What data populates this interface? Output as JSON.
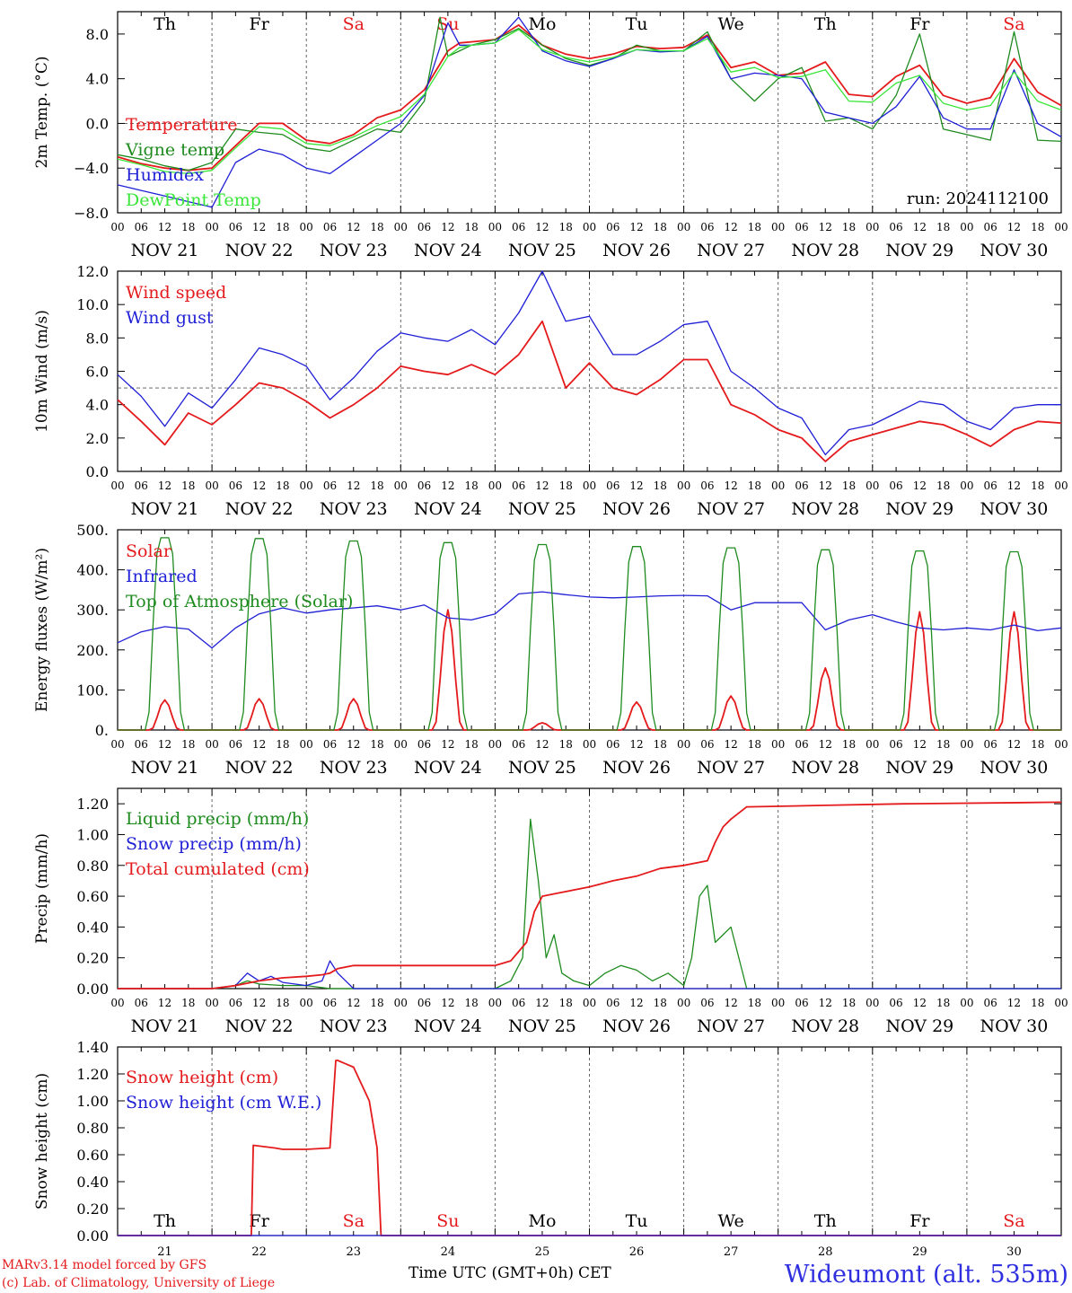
{
  "colors": {
    "red": "#e41a1c",
    "blue": "#1f1fd6",
    "green": "#1e8b1e",
    "lightgreen": "#39e639",
    "axis": "#000000",
    "weekend": "#e41a1c"
  },
  "hour_labels": [
    "00",
    "06",
    "12",
    "18"
  ],
  "date_labels": [
    "NOV 21",
    "NOV 22",
    "NOV 23",
    "NOV 24",
    "NOV 25",
    "NOV 26",
    "NOV 27",
    "NOV 28",
    "NOV 29",
    "NOV 30"
  ],
  "weekday_labels": [
    {
      "text": "Th",
      "weekend": false
    },
    {
      "text": "Fr",
      "weekend": false
    },
    {
      "text": "Sa",
      "weekend": true
    },
    {
      "text": "Su",
      "weekend": true
    },
    {
      "text": "Mo",
      "weekend": false
    },
    {
      "text": "Tu",
      "weekend": false
    },
    {
      "text": "We",
      "weekend": false
    },
    {
      "text": "Th",
      "weekend": false
    },
    {
      "text": "Fr",
      "weekend": false
    },
    {
      "text": "Sa",
      "weekend": true
    }
  ],
  "day_numbers": [
    "21",
    "22",
    "23",
    "24",
    "25",
    "26",
    "27",
    "28",
    "29",
    "30"
  ],
  "footer": {
    "model": "MARv3.14 model forced by GFS",
    "copyright": "(c) Lab. of Climatology, University of Liege",
    "xlabel": "Time UTC (GMT+0h)",
    "xlabel_overlay": "CET",
    "station": "Wideumont (alt. 535m)"
  },
  "chart_data": [
    {
      "type": "line",
      "ylabel": "2m Temp. (°C)",
      "ylim": [
        -8,
        10
      ],
      "yticks": [
        -8,
        -4,
        0,
        4,
        8
      ],
      "ytick_labels": [
        "−8.0",
        "−4.0",
        "0.0",
        "4.0",
        "8.0"
      ],
      "ref_line": 0,
      "show_weekdays": true,
      "annotation": "run: 2024112100",
      "x_unit": "hours since NOV 21 00 UTC",
      "series": [
        {
          "name": "Temperature",
          "color": "red",
          "x": [
            0,
            6,
            12,
            18,
            24,
            30,
            36,
            42,
            48,
            54,
            60,
            66,
            72,
            78,
            84,
            87,
            90,
            96,
            102,
            108,
            114,
            120,
            126,
            132,
            138,
            144,
            150,
            156,
            162,
            168,
            174,
            180,
            186,
            192,
            198,
            204,
            210,
            216,
            222,
            228,
            234,
            240
          ],
          "y": [
            -3.0,
            -3.6,
            -4.0,
            -4.2,
            -4.0,
            -2.0,
            0.0,
            0.0,
            -1.5,
            -1.8,
            -1.0,
            0.5,
            1.2,
            3.0,
            6.5,
            7.2,
            7.3,
            7.5,
            8.8,
            7.0,
            6.2,
            5.8,
            6.2,
            6.9,
            6.7,
            6.8,
            7.9,
            5.0,
            5.5,
            4.3,
            4.5,
            5.5,
            2.6,
            2.4,
            4.2,
            5.2,
            2.5,
            1.8,
            2.3,
            5.8,
            2.8,
            1.6
          ]
        },
        {
          "name": "Vigne temp",
          "color": "green",
          "x": [
            0,
            6,
            12,
            18,
            24,
            30,
            36,
            42,
            48,
            54,
            60,
            66,
            72,
            78,
            82,
            84,
            87,
            90,
            96,
            102,
            108,
            114,
            120,
            126,
            132,
            138,
            144,
            150,
            156,
            162,
            168,
            174,
            180,
            186,
            192,
            198,
            204,
            210,
            216,
            222,
            228,
            234,
            240
          ],
          "y": [
            -2.8,
            -3.2,
            -3.8,
            -4.2,
            -3.5,
            -0.5,
            -0.8,
            -1.0,
            -2.2,
            -2.5,
            -1.5,
            -0.5,
            -0.8,
            2.0,
            9.5,
            6.0,
            6.5,
            7.0,
            7.5,
            8.5,
            7.0,
            5.8,
            5.2,
            5.8,
            7.0,
            6.5,
            6.5,
            8.2,
            4.0,
            2.0,
            4.0,
            5.0,
            0.2,
            0.5,
            -0.5,
            2.5,
            8.0,
            -0.5,
            -1.0,
            -1.5,
            8.2,
            -1.5,
            -1.6
          ]
        },
        {
          "name": "Humidex",
          "color": "blue",
          "x": [
            0,
            6,
            12,
            18,
            24,
            30,
            36,
            42,
            48,
            54,
            60,
            66,
            72,
            78,
            84,
            87,
            90,
            96,
            102,
            108,
            114,
            120,
            126,
            132,
            138,
            144,
            150,
            156,
            162,
            168,
            174,
            180,
            186,
            192,
            198,
            204,
            210,
            216,
            222,
            228,
            234,
            240
          ],
          "y": [
            -5.5,
            -6.0,
            -6.5,
            -7.0,
            -7.5,
            -3.5,
            -2.3,
            -2.8,
            -4.0,
            -4.5,
            -3.0,
            -1.5,
            0.0,
            2.5,
            9.0,
            7.0,
            7.0,
            7.2,
            9.5,
            6.5,
            5.6,
            5.1,
            5.8,
            6.6,
            6.4,
            6.5,
            7.8,
            4.0,
            4.5,
            4.3,
            4.0,
            1.0,
            0.5,
            0.0,
            1.5,
            4.2,
            0.5,
            -0.5,
            -0.5,
            4.8,
            0.0,
            -1.2
          ]
        },
        {
          "name": "DewPoint Temp",
          "color": "lightgreen",
          "x": [
            0,
            6,
            12,
            18,
            24,
            30,
            36,
            42,
            48,
            54,
            60,
            66,
            72,
            78,
            84,
            87,
            90,
            96,
            102,
            108,
            114,
            120,
            126,
            132,
            138,
            144,
            150,
            156,
            162,
            168,
            174,
            180,
            186,
            192,
            198,
            204,
            210,
            216,
            222,
            228,
            234,
            240
          ],
          "y": [
            -3.2,
            -3.7,
            -4.3,
            -4.5,
            -4.2,
            -2.2,
            -0.3,
            -0.5,
            -1.8,
            -2.0,
            -1.2,
            -0.2,
            0.6,
            2.6,
            6.0,
            6.8,
            7.0,
            7.2,
            8.4,
            6.6,
            5.9,
            5.5,
            5.9,
            6.6,
            6.5,
            6.5,
            7.6,
            4.6,
            5.0,
            4.1,
            4.2,
            4.8,
            2.0,
            1.9,
            3.6,
            4.3,
            1.8,
            1.2,
            1.6,
            4.6,
            2.0,
            1.2
          ]
        }
      ]
    },
    {
      "type": "line",
      "ylabel": "10m Wind (m/s)",
      "ylim": [
        0,
        12
      ],
      "yticks": [
        0,
        2,
        4,
        6,
        8,
        10,
        12
      ],
      "ytick_labels": [
        "0.0",
        "2.0",
        "4.0",
        "6.0",
        "8.0",
        "10.0",
        "12.0"
      ],
      "ref_line": 5,
      "show_weekdays": false,
      "x_unit": "hours since NOV 21 00 UTC",
      "series": [
        {
          "name": "Wind speed",
          "color": "red",
          "x": [
            0,
            6,
            12,
            18,
            24,
            30,
            36,
            42,
            48,
            54,
            60,
            66,
            72,
            78,
            84,
            90,
            96,
            102,
            108,
            114,
            120,
            126,
            132,
            138,
            144,
            150,
            156,
            162,
            168,
            174,
            180,
            186,
            192,
            198,
            204,
            210,
            216,
            222,
            228,
            234,
            240
          ],
          "y": [
            4.3,
            3.0,
            1.6,
            3.5,
            2.8,
            4.0,
            5.3,
            5.0,
            4.2,
            3.2,
            4.0,
            5.0,
            6.3,
            6.0,
            5.8,
            6.4,
            5.8,
            7.0,
            9.0,
            5.0,
            6.5,
            5.0,
            4.6,
            5.5,
            6.7,
            6.7,
            4.0,
            3.4,
            2.5,
            2.0,
            0.6,
            1.8,
            2.2,
            2.6,
            3.0,
            2.8,
            2.2,
            1.5,
            2.5,
            3.0,
            2.9
          ]
        },
        {
          "name": "Wind gust",
          "color": "blue",
          "x": [
            0,
            6,
            12,
            18,
            24,
            30,
            36,
            42,
            48,
            54,
            60,
            66,
            72,
            78,
            84,
            90,
            96,
            102,
            108,
            114,
            120,
            126,
            132,
            138,
            144,
            150,
            156,
            162,
            168,
            174,
            180,
            186,
            192,
            198,
            204,
            210,
            216,
            222,
            228,
            234,
            240
          ],
          "y": [
            5.8,
            4.5,
            2.7,
            4.7,
            3.8,
            5.5,
            7.4,
            7.0,
            6.3,
            4.3,
            5.6,
            7.2,
            8.3,
            8.0,
            7.8,
            8.5,
            7.6,
            9.5,
            12.0,
            9.0,
            9.3,
            7.0,
            7.0,
            7.8,
            8.8,
            9.0,
            6.0,
            5.0,
            3.8,
            3.2,
            1.0,
            2.5,
            2.8,
            3.5,
            4.2,
            4.0,
            3.0,
            2.5,
            3.8,
            4.0,
            4.0
          ]
        }
      ]
    },
    {
      "type": "line",
      "ylabel": "Energy fluxes (W/m²)",
      "ylim": [
        0,
        500
      ],
      "yticks": [
        0,
        100,
        200,
        300,
        400,
        500
      ],
      "ytick_labels": [
        "0.",
        "100.",
        "200.",
        "300.",
        "400.",
        "500."
      ],
      "show_weekdays": false,
      "x_unit": "hours since NOV 21 00 UTC",
      "solar_toa_peaks": [
        480,
        478,
        472,
        468,
        463,
        458,
        455,
        450,
        447,
        445
      ],
      "solar_surface_peaks": [
        75,
        78,
        78,
        300,
        18,
        70,
        85,
        155,
        295,
        295
      ],
      "series": [
        {
          "name": "Solar",
          "color": "red"
        },
        {
          "name": "Infrared",
          "color": "blue",
          "x": [
            0,
            6,
            12,
            18,
            24,
            30,
            36,
            42,
            48,
            54,
            60,
            66,
            72,
            78,
            84,
            90,
            96,
            102,
            108,
            114,
            120,
            126,
            132,
            138,
            144,
            150,
            156,
            162,
            168,
            174,
            180,
            186,
            192,
            198,
            204,
            210,
            216,
            222,
            228,
            234,
            240
          ],
          "y": [
            218,
            245,
            258,
            252,
            205,
            255,
            290,
            305,
            292,
            300,
            305,
            310,
            300,
            312,
            280,
            275,
            290,
            340,
            345,
            338,
            332,
            330,
            332,
            335,
            336,
            335,
            300,
            318,
            318,
            318,
            250,
            275,
            288,
            270,
            255,
            250,
            255,
            250,
            262,
            248,
            255
          ]
        },
        {
          "name": "Top of Atmosphere (Solar)",
          "color": "green"
        }
      ]
    },
    {
      "type": "line",
      "ylabel": "Precip (mm/h)",
      "ylim": [
        0,
        1.3
      ],
      "yticks": [
        0,
        0.2,
        0.4,
        0.6,
        0.8,
        1.0,
        1.2
      ],
      "ytick_labels": [
        "0.00",
        "0.20",
        "0.40",
        "0.60",
        "0.80",
        "1.00",
        "1.20"
      ],
      "show_weekdays": false,
      "x_unit": "hours since NOV 21 00 UTC",
      "series": [
        {
          "name": "Liquid precip (mm/h)",
          "color": "green",
          "x": [
            0,
            24,
            30,
            33,
            36,
            42,
            48,
            54,
            60,
            96,
            100,
            103,
            105,
            107,
            109,
            111,
            113,
            116,
            120,
            124,
            128,
            132,
            136,
            140,
            144,
            146,
            148,
            150,
            152,
            154,
            156,
            160,
            240
          ],
          "y": [
            0,
            0,
            0.02,
            0.05,
            0.03,
            0.02,
            0.02,
            0.0,
            0.0,
            0.0,
            0.05,
            0.2,
            1.1,
            0.7,
            0.2,
            0.35,
            0.1,
            0.05,
            0.02,
            0.1,
            0.15,
            0.12,
            0.05,
            0.1,
            0.02,
            0.2,
            0.6,
            0.67,
            0.3,
            0.35,
            0.4,
            0.0,
            0.0
          ]
        },
        {
          "name": "Snow precip (mm/h)",
          "color": "blue",
          "x": [
            0,
            24,
            30,
            33,
            36,
            39,
            42,
            48,
            52,
            54,
            56,
            60,
            240
          ],
          "y": [
            0,
            0,
            0.02,
            0.1,
            0.05,
            0.08,
            0.04,
            0.02,
            0.05,
            0.18,
            0.1,
            0.0,
            0.0
          ]
        },
        {
          "name": "Total cumulated (cm)",
          "color": "red",
          "x": [
            0,
            24,
            30,
            36,
            42,
            48,
            52,
            54,
            56,
            60,
            96,
            100,
            104,
            106,
            108,
            112,
            120,
            126,
            132,
            138,
            144,
            150,
            152,
            154,
            156,
            160,
            180,
            200,
            240
          ],
          "y": [
            0,
            0,
            0.02,
            0.05,
            0.07,
            0.08,
            0.09,
            0.1,
            0.13,
            0.15,
            0.15,
            0.18,
            0.3,
            0.5,
            0.6,
            0.62,
            0.66,
            0.7,
            0.73,
            0.78,
            0.8,
            0.83,
            0.95,
            1.05,
            1.1,
            1.18,
            1.19,
            1.2,
            1.21
          ]
        }
      ]
    },
    {
      "type": "line",
      "ylabel": "Snow height (cm)",
      "ylim": [
        0,
        1.4
      ],
      "yticks": [
        0,
        0.2,
        0.4,
        0.6,
        0.8,
        1.0,
        1.2,
        1.4
      ],
      "ytick_labels": [
        "0.00",
        "0.20",
        "0.40",
        "0.60",
        "0.80",
        "1.00",
        "1.20",
        "1.40"
      ],
      "show_weekdays": false,
      "bottom_weekdays": true,
      "x_unit": "hours since NOV 21 00 UTC",
      "series": [
        {
          "name": "Snow height (cm)",
          "color": "red",
          "x": [
            0,
            34,
            34.5,
            40,
            42,
            48,
            54,
            55.5,
            56,
            60,
            64,
            66,
            67,
            68,
            240
          ],
          "y": [
            0,
            0,
            0.67,
            0.65,
            0.64,
            0.64,
            0.65,
            1.3,
            1.3,
            1.25,
            1.0,
            0.65,
            0.0,
            0.0,
            0.0
          ]
        },
        {
          "name": "Snow height (cm W.E.)",
          "color": "blue",
          "x": [
            0,
            240
          ],
          "y": [
            0,
            0
          ]
        }
      ]
    }
  ]
}
